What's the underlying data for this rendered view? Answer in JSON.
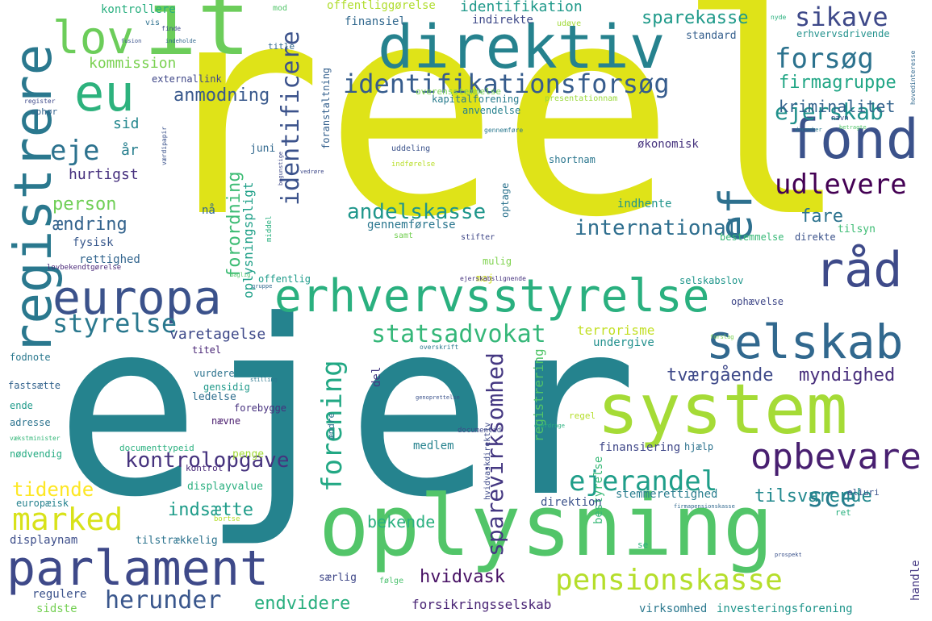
{
  "words": [
    {
      "text": "reel",
      "color": "#dfe318"
    },
    {
      "text": "ejer",
      "color": "#25838e"
    },
    {
      "text": "oplysning",
      "color": "#52c569"
    },
    {
      "text": "system",
      "color": "#a5db36"
    },
    {
      "text": "direktiv",
      "color": "#26828e"
    },
    {
      "text": "it",
      "color": "#6ccd5a"
    },
    {
      "text": "europa",
      "color": "#3b528b"
    },
    {
      "text": "erhvervsstyrelse",
      "color": "#2ab07f"
    },
    {
      "text": "parlament",
      "color": "#3e4989"
    },
    {
      "text": "registrere",
      "color": "#2a788e"
    },
    {
      "text": "fond",
      "color": "#3b528b"
    },
    {
      "text": "selskab",
      "color": "#31688e"
    },
    {
      "text": "eu",
      "color": "#2db27d"
    },
    {
      "text": "lov",
      "color": "#6ccd5a"
    },
    {
      "text": "råd",
      "color": "#3e4a89"
    },
    {
      "text": "ef",
      "color": "#2d708e"
    },
    {
      "text": "identifikationsforsøg",
      "color": "#365c8d"
    },
    {
      "text": "opbevare",
      "color": "#481f70"
    },
    {
      "text": "pensionskasse",
      "color": "#b5de2b"
    },
    {
      "text": "forsøg",
      "color": "#2c728e"
    },
    {
      "text": "sikave",
      "color": "#3e4989"
    },
    {
      "text": "marked",
      "color": "#d8e219"
    },
    {
      "text": "statsadvokat",
      "color": "#35b779"
    },
    {
      "text": "udlevere",
      "color": "#440154"
    },
    {
      "text": "ejerandel",
      "color": "#1f9e89"
    },
    {
      "text": "identificere",
      "color": "#3b528b"
    },
    {
      "text": "herunder",
      "color": "#39568c"
    },
    {
      "text": "eje",
      "color": "#2c728e"
    },
    {
      "text": "styrelse",
      "color": "#2a788e"
    },
    {
      "text": "forening",
      "color": "#22a884"
    },
    {
      "text": "sce",
      "color": "#287d8e"
    },
    {
      "text": "kontrolopgave",
      "color": "#46337e"
    },
    {
      "text": "sparevirksomhed",
      "color": "#453882"
    },
    {
      "text": "ejerskab",
      "color": "#21918c"
    },
    {
      "text": "international",
      "color": "#2e6e8e"
    },
    {
      "text": "andelskasse",
      "color": "#1f968b"
    },
    {
      "text": "tidende",
      "color": "#fde725"
    },
    {
      "text": "endvidere",
      "color": "#29af7f"
    },
    {
      "text": "anmodning",
      "color": "#38588c"
    },
    {
      "text": "firmagruppe",
      "color": "#21a685"
    },
    {
      "text": "sparekasse",
      "color": "#1f9a8a"
    },
    {
      "text": "kriminalitet",
      "color": "#33638d"
    },
    {
      "text": "person",
      "color": "#70cf57"
    },
    {
      "text": "ændring",
      "color": "#33638d"
    },
    {
      "text": "hvidvask",
      "color": "#471164"
    },
    {
      "text": "forordning",
      "color": "#3dbc74"
    },
    {
      "text": "myndighed",
      "color": "#472d7b"
    },
    {
      "text": "tværgående",
      "color": "#3e4989"
    },
    {
      "text": "tilsvarende",
      "color": "#23898e"
    },
    {
      "text": "indsætte",
      "color": "#1e9c89"
    },
    {
      "text": "bekende",
      "color": "#2ab07f"
    },
    {
      "text": "hurtigst",
      "color": "#46307e"
    },
    {
      "text": "sid",
      "color": "#24878e"
    },
    {
      "text": "år",
      "color": "#277f8e"
    },
    {
      "text": "varetagelse",
      "color": "#3e4989"
    },
    {
      "text": "fare",
      "color": "#2c728e"
    },
    {
      "text": "identifikation",
      "color": "#1f998a"
    },
    {
      "text": "kommission",
      "color": "#7ad151"
    },
    {
      "text": "juni",
      "color": "#31688e"
    },
    {
      "text": "økonomisk",
      "color": "#46337e"
    },
    {
      "text": "oplysningspligt",
      "color": "#1fa088"
    },
    {
      "text": "gennemførelse",
      "color": "#2a768e"
    },
    {
      "text": "terrorisme",
      "color": "#c2df23"
    },
    {
      "text": "registrering",
      "color": "#52c569"
    },
    {
      "text": "stemmerettighed",
      "color": "#287d8e"
    },
    {
      "text": "forsikringsselskab",
      "color": "#482374"
    },
    {
      "text": "investeringsforening",
      "color": "#1f958b"
    },
    {
      "text": "virksomhed",
      "color": "#2a788e"
    },
    {
      "text": "bestyrelse",
      "color": "#38b977"
    },
    {
      "text": "finansiering",
      "color": "#3f4788"
    },
    {
      "text": "medlem",
      "color": "#26828e"
    },
    {
      "text": "direktion",
      "color": "#3b528b"
    },
    {
      "text": "regulere",
      "color": "#3b528b"
    },
    {
      "text": "sidste",
      "color": "#75d054"
    },
    {
      "text": "særlig",
      "color": "#3f4788"
    },
    {
      "text": "følge",
      "color": "#4ac16d"
    },
    {
      "text": "handle",
      "color": "#453882"
    },
    {
      "text": "rettighed",
      "color": "#32658e"
    },
    {
      "text": "fysisk",
      "color": "#38588c"
    },
    {
      "text": "displaynam",
      "color": "#3d4e8a"
    },
    {
      "text": "europæisk",
      "color": "#26828e"
    },
    {
      "text": "tilstrækkelig",
      "color": "#2c738e"
    },
    {
      "text": "displayvalue",
      "color": "#29af7f"
    },
    {
      "text": "penge",
      "color": "#a2da37"
    },
    {
      "text": "kontrol",
      "color": "#482878"
    },
    {
      "text": "documenttypeid",
      "color": "#2ab07f"
    },
    {
      "text": "nødvendig",
      "color": "#25ab82"
    },
    {
      "text": "vækstminister",
      "color": "#35b779"
    },
    {
      "text": "adresse",
      "color": "#2c738e"
    },
    {
      "text": "ende",
      "color": "#1f9a8a"
    },
    {
      "text": "fastsætte",
      "color": "#33638d"
    },
    {
      "text": "ledelse",
      "color": "#2e6e8e"
    },
    {
      "text": "nævne",
      "color": "#481b6d"
    },
    {
      "text": "gensidig",
      "color": "#1f998a"
    },
    {
      "text": "forebygge",
      "color": "#46307e"
    },
    {
      "text": "vurdere",
      "color": "#2c738e"
    },
    {
      "text": "titel",
      "color": "#482475"
    },
    {
      "text": "undergive",
      "color": "#21908d"
    },
    {
      "text": "fodnote",
      "color": "#2a788e"
    },
    {
      "text": "selskabslov",
      "color": "#1f968b"
    },
    {
      "text": "ophævelse",
      "color": "#3f4788"
    },
    {
      "text": "offentlig",
      "color": "#1e9b8a"
    },
    {
      "text": "maj",
      "color": "#d2e21b"
    },
    {
      "text": "mulig",
      "color": "#7fd34e"
    },
    {
      "text": "samt",
      "color": "#75d054"
    },
    {
      "text": "stifter",
      "color": "#3f4788"
    },
    {
      "text": "bestemmelse",
      "color": "#38b977"
    },
    {
      "text": "direkte",
      "color": "#3b528b"
    },
    {
      "text": "indhente",
      "color": "#1f948c"
    },
    {
      "text": "tilsyn",
      "color": "#3dbc74"
    },
    {
      "text": "optage",
      "color": "#2c738e"
    },
    {
      "text": "shortnam",
      "color": "#2a768e"
    },
    {
      "text": "uddeling",
      "color": "#3b528b"
    },
    {
      "text": "indførelse",
      "color": "#b8de29"
    },
    {
      "text": "del",
      "color": "#453882"
    },
    {
      "text": "nå",
      "color": "#31688e"
    },
    {
      "text": "mod",
      "color": "#52c569"
    },
    {
      "text": "vis",
      "color": "#2d708e"
    },
    {
      "text": "kontrollere",
      "color": "#29af7f"
    },
    {
      "text": "offentliggørelse",
      "color": "#b0dd2f"
    },
    {
      "text": "finansiel",
      "color": "#31688e"
    },
    {
      "text": "indirekte",
      "color": "#3e4989"
    },
    {
      "text": "udøve",
      "color": "#a0da39"
    },
    {
      "text": "standard",
      "color": "#355f8d"
    },
    {
      "text": "erhvervsdrivende",
      "color": "#21918c"
    },
    {
      "text": "kapitalforening",
      "color": "#287c8e"
    },
    {
      "text": "overensstemmelse",
      "color": "#7ad151"
    },
    {
      "text": "presentationnam",
      "color": "#9bd93c"
    },
    {
      "text": "anvendelse",
      "color": "#26818e"
    },
    {
      "text": "foranstaltning",
      "color": "#34608d"
    },
    {
      "text": "externallink",
      "color": "#3f4788"
    },
    {
      "text": "title",
      "color": "#31688e"
    },
    {
      "text": "ophør",
      "color": "#33638d"
    },
    {
      "text": "register",
      "color": "#3e4989"
    },
    {
      "text": "ændre",
      "color": "#2c728e"
    },
    {
      "text": "hvidvaskdirektiv",
      "color": "#3e4989"
    },
    {
      "text": "documentid",
      "color": "#3e4989"
    },
    {
      "text": "regel",
      "color": "#b5de2b"
    },
    {
      "text": "hjælp",
      "color": "#2c728e"
    },
    {
      "text": "se",
      "color": "#2ab07f"
    },
    {
      "text": "ret",
      "color": "#2ab07f"
    },
    {
      "text": "eliuri",
      "color": "#3b528b"
    },
    {
      "text": "lovbekendtgørelse",
      "color": "#482677"
    },
    {
      "text": "overskrift",
      "color": "#2a788e"
    },
    {
      "text": "middel",
      "color": "#2ab07f"
    },
    {
      "text": "vedrøre",
      "color": "#3e4989"
    },
    {
      "text": "gennemføre",
      "color": "#2a788e"
    },
    {
      "text": "værdipapir",
      "color": "#3b528b"
    },
    {
      "text": "forslag",
      "color": "#7ad151"
    },
    {
      "text": "bortse",
      "color": "#b5de2b"
    },
    {
      "text": "navn",
      "color": "#3e4989"
    },
    {
      "text": "hovedinteresse",
      "color": "#31688e"
    },
    {
      "text": "ejerskabslignende",
      "color": "#46337e"
    },
    {
      "text": "prospekt",
      "color": "#3b528b"
    },
    {
      "text": "betragte",
      "color": "#52c569"
    },
    {
      "text": "december",
      "color": "#2a788e"
    },
    {
      "text": "firmapensionskasse",
      "color": "#31688e"
    },
    {
      "text": "genoprettelse",
      "color": "#3b528b"
    },
    {
      "text": "overdrage",
      "color": "#2ab07f"
    },
    {
      "text": "begunstige",
      "color": "#3e4989"
    },
    {
      "text": "daglig",
      "color": "#52c569"
    },
    {
      "text": "gruppe",
      "color": "#31688e"
    },
    {
      "text": "stilling",
      "color": "#2a788e"
    },
    {
      "text": "finde",
      "color": "#3e4989"
    },
    {
      "text": "indeholde",
      "color": "#31688e"
    },
    {
      "text": "fusion",
      "color": "#3b528b"
    },
    {
      "text": "nyde",
      "color": "#2ab07f"
    }
  ]
}
